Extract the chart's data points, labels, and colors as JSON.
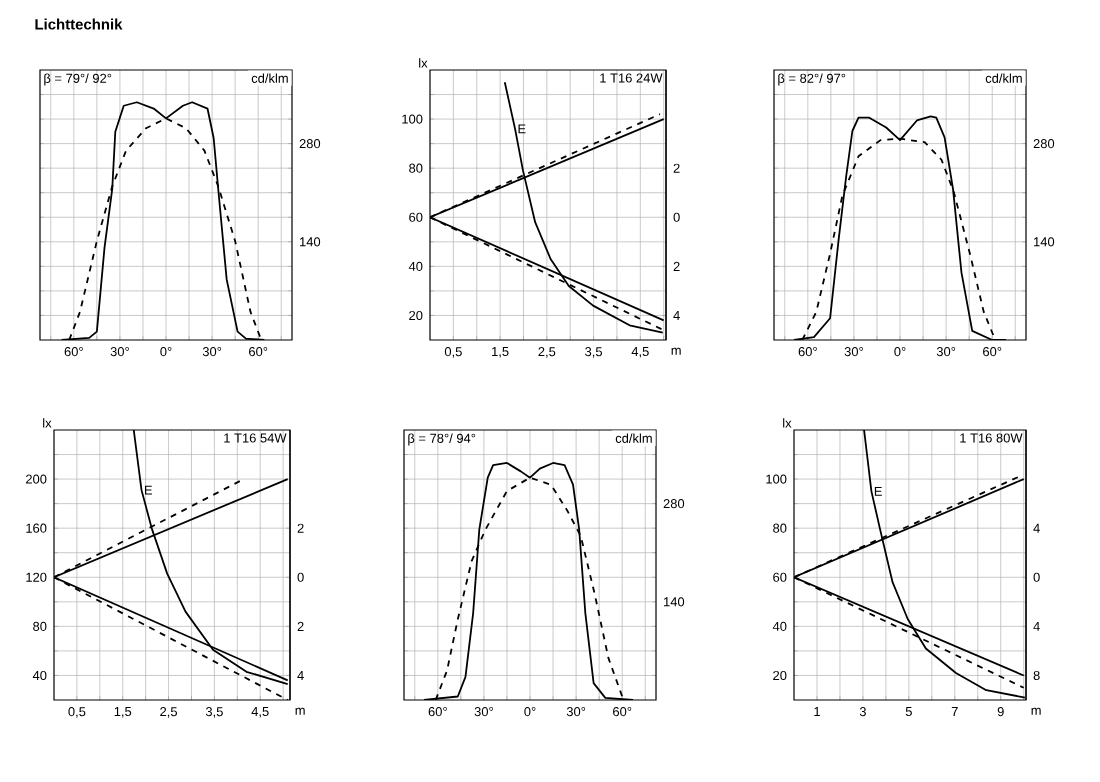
{
  "chart_data": [
    {
      "type": "line",
      "title": "Lichttechnik",
      "ylabel": "cd/klm",
      "annotations": [
        "β = 79°/ 92°"
      ],
      "xlim": [
        -82,
        82
      ],
      "ylim": [
        0,
        385
      ],
      "grid": true,
      "xticks": [
        {
          "value": -75,
          "label": null
        },
        {
          "value": -60,
          "label": "60°"
        },
        {
          "value": -45,
          "label": null
        },
        {
          "value": -30,
          "label": "30°"
        },
        {
          "value": -15,
          "label": null
        },
        {
          "value": 0,
          "label": "0°"
        },
        {
          "value": 15,
          "label": null
        },
        {
          "value": 30,
          "label": "30°"
        },
        {
          "value": 45,
          "label": null
        },
        {
          "value": 60,
          "label": "60°"
        },
        {
          "value": 75,
          "label": null
        }
      ],
      "yticks": [
        {
          "value": 35,
          "label": null
        },
        {
          "value": 70,
          "label": null
        },
        {
          "value": 105,
          "label": null
        },
        140,
        {
          "value": 175,
          "label": null
        },
        {
          "value": 210,
          "label": null
        },
        {
          "value": 245,
          "label": null
        },
        280,
        {
          "value": 315,
          "label": null
        },
        {
          "value": 350,
          "label": null
        }
      ],
      "series": [
        {
          "color": "#000000",
          "line_style": "solid",
          "x": [
            -68,
            -50,
            -45,
            -40,
            -35,
            -33,
            -27.5,
            -19,
            -8,
            0,
            11,
            17,
            27,
            31,
            34,
            39.5,
            46.6,
            52,
            64
          ],
          "values": [
            0,
            3,
            12,
            132,
            215,
            297,
            334,
            339,
            330,
            316,
            334,
            339,
            330,
            288,
            215,
            86,
            12,
            2,
            0
          ]
        },
        {
          "color": "#000000",
          "line_style": "dashed",
          "x": [
            -63,
            -56,
            -45,
            -35,
            -26,
            -13,
            0,
            13,
            25,
            34,
            45,
            55,
            62
          ],
          "values": [
            0,
            40,
            141,
            219,
            270,
            302,
            316,
            302,
            270,
            219,
            141,
            40,
            0
          ]
        }
      ]
    },
    {
      "type": "line",
      "ylabel": "lx",
      "xlabel": "m",
      "annotations": [
        "1 T16 24W"
      ],
      "xlim": [
        0,
        5.05
      ],
      "ylim": [
        10,
        120
      ],
      "y2lim": [
        -5,
        6
      ],
      "grid": true,
      "xticks": [
        {
          "value": 0.5,
          "label": "0,5"
        },
        {
          "value": 1,
          "label": null
        },
        {
          "value": 1.5,
          "label": "1,5"
        },
        {
          "value": 2,
          "label": null
        },
        {
          "value": 2.5,
          "label": "2,5"
        },
        {
          "value": 3,
          "label": null
        },
        {
          "value": 3.5,
          "label": "3,5"
        },
        {
          "value": 4,
          "label": null
        },
        {
          "value": 4.5,
          "label": "4,5"
        },
        {
          "value": 5,
          "label": null
        }
      ],
      "yticks": [
        20,
        {
          "value": 30,
          "label": null
        },
        40,
        {
          "value": 50,
          "label": null
        },
        60,
        {
          "value": 70,
          "label": null
        },
        80,
        {
          "value": 90,
          "label": null
        },
        100,
        {
          "value": 110,
          "label": null
        }
      ],
      "y2ticks": [
        2,
        0,
        {
          "value": -2,
          "label": "2"
        },
        {
          "value": -4,
          "label": "4"
        }
      ],
      "series": [
        {
          "name": "E",
          "color": "#000000",
          "line_style": "solid",
          "x": [
            1.6,
            1.82,
            1.99,
            2.25,
            2.58,
            2.97,
            3.49,
            4.27,
            4.98
          ],
          "values": [
            115,
            96,
            79,
            58,
            43,
            32,
            24,
            16,
            13
          ]
        },
        {
          "color": "#000000",
          "line_style": "solid",
          "axis": "y2",
          "x": [
            0,
            5
          ],
          "values": [
            0,
            4.0
          ]
        },
        {
          "color": "#000000",
          "line_style": "dashed",
          "axis": "y2",
          "x": [
            0,
            4.92
          ],
          "values": [
            0,
            4.2
          ]
        },
        {
          "color": "#000000",
          "line_style": "solid",
          "axis": "y2",
          "x": [
            0,
            5
          ],
          "values": [
            0,
            -4.2
          ]
        },
        {
          "color": "#000000",
          "line_style": "dashed",
          "axis": "y2",
          "x": [
            0,
            5
          ],
          "values": [
            0,
            -4.6
          ]
        }
      ]
    },
    {
      "type": "line",
      "ylabel": "cd/klm",
      "annotations": [
        "β = 82°/ 97°"
      ],
      "xlim": [
        -82,
        82
      ],
      "ylim": [
        0,
        385
      ],
      "grid": true,
      "xticks": [
        {
          "value": -75,
          "label": null
        },
        {
          "value": -60,
          "label": "60°"
        },
        {
          "value": -45,
          "label": null
        },
        {
          "value": -30,
          "label": "30°"
        },
        {
          "value": -15,
          "label": null
        },
        {
          "value": 0,
          "label": "0°"
        },
        {
          "value": 15,
          "label": null
        },
        {
          "value": 30,
          "label": "30°"
        },
        {
          "value": 45,
          "label": null
        },
        {
          "value": 60,
          "label": "60°"
        },
        {
          "value": 75,
          "label": null
        }
      ],
      "yticks": [
        {
          "value": 35,
          "label": null
        },
        {
          "value": 70,
          "label": null
        },
        {
          "value": 105,
          "label": null
        },
        140,
        {
          "value": 175,
          "label": null
        },
        {
          "value": 210,
          "label": null
        },
        {
          "value": 245,
          "label": null
        },
        280,
        {
          "value": 315,
          "label": null
        },
        {
          "value": 350,
          "label": null
        }
      ],
      "series": [
        {
          "color": "#000000",
          "line_style": "solid",
          "x": [
            -69,
            -56,
            -45.5,
            -40,
            -35,
            -31,
            -27,
            -20,
            -9,
            0,
            11,
            20,
            23.6,
            29,
            34.5,
            40,
            47,
            60,
            69
          ],
          "values": [
            0,
            4,
            31,
            142,
            234,
            298,
            317,
            317,
            303,
            285,
            313,
            319,
            317,
            289,
            215,
            96,
            13,
            0,
            0
          ]
        },
        {
          "color": "#000000",
          "line_style": "dashed",
          "x": [
            -63.6,
            -54.5,
            -45.5,
            -37.5,
            -27,
            -12.7,
            0,
            16,
            27,
            35,
            45.5,
            54.5,
            62
          ],
          "values": [
            0,
            40,
            123,
            206,
            262,
            285,
            287,
            282,
            257,
            211,
            123,
            40,
            0
          ]
        }
      ]
    },
    {
      "type": "line",
      "ylabel": "lx",
      "xlabel": "m",
      "annotations": [
        "1 T16 54W"
      ],
      "xlim": [
        0,
        5.15
      ],
      "ylim": [
        20,
        240
      ],
      "y2lim": [
        -5,
        6
      ],
      "grid": true,
      "xticks": [
        {
          "value": 0.5,
          "label": "0,5"
        },
        {
          "value": 1,
          "label": null
        },
        {
          "value": 1.5,
          "label": "1,5"
        },
        {
          "value": 2,
          "label": null
        },
        {
          "value": 2.5,
          "label": "2,5"
        },
        {
          "value": 3,
          "label": null
        },
        {
          "value": 3.5,
          "label": "3,5"
        },
        {
          "value": 4,
          "label": null
        },
        {
          "value": 4.5,
          "label": "4,5"
        },
        {
          "value": 5,
          "label": null
        }
      ],
      "yticks": [
        40,
        {
          "value": 60,
          "label": null
        },
        80,
        {
          "value": 100,
          "label": null
        },
        120,
        {
          "value": 140,
          "label": null
        },
        160,
        {
          "value": 180,
          "label": null
        },
        200,
        {
          "value": 220,
          "label": null
        }
      ],
      "y2ticks": [
        2,
        0,
        {
          "value": -2,
          "label": "2"
        },
        {
          "value": -4,
          "label": "4"
        }
      ],
      "series": [
        {
          "name": "E",
          "color": "#000000",
          "line_style": "solid",
          "x": [
            1.74,
            1.91,
            2.14,
            2.47,
            2.87,
            3.47,
            4.2,
            5.1
          ],
          "values": [
            240,
            191,
            159,
            123,
            92,
            61,
            43,
            33
          ]
        },
        {
          "color": "#000000",
          "line_style": "solid",
          "axis": "y2",
          "x": [
            0,
            5.1
          ],
          "values": [
            0,
            4.0
          ]
        },
        {
          "color": "#000000",
          "line_style": "dashed",
          "axis": "y2",
          "x": [
            0,
            4.14
          ],
          "values": [
            0,
            4.0
          ]
        },
        {
          "color": "#000000",
          "line_style": "solid",
          "axis": "y2",
          "x": [
            0,
            5.1
          ],
          "values": [
            0,
            -4.2
          ]
        },
        {
          "color": "#000000",
          "line_style": "dashed",
          "axis": "y2",
          "x": [
            0,
            5.1
          ],
          "values": [
            0,
            -5.0
          ]
        }
      ]
    },
    {
      "type": "line",
      "ylabel": "cd/klm",
      "annotations": [
        "β = 78°/ 94°"
      ],
      "xlim": [
        -82,
        82
      ],
      "ylim": [
        0,
        385
      ],
      "grid": true,
      "xticks": [
        {
          "value": -75,
          "label": null
        },
        {
          "value": -60,
          "label": "60°"
        },
        {
          "value": -45,
          "label": null
        },
        {
          "value": -30,
          "label": "30°"
        },
        {
          "value": -15,
          "label": null
        },
        {
          "value": 0,
          "label": "0°"
        },
        {
          "value": 15,
          "label": null
        },
        {
          "value": 30,
          "label": "30°"
        },
        {
          "value": 45,
          "label": null
        },
        {
          "value": 60,
          "label": "60°"
        },
        {
          "value": 75,
          "label": null
        }
      ],
      "yticks": [
        {
          "value": 35,
          "label": null
        },
        {
          "value": 70,
          "label": null
        },
        {
          "value": 105,
          "label": null
        },
        140,
        {
          "value": 175,
          "label": null
        },
        {
          "value": 210,
          "label": null
        },
        {
          "value": 245,
          "label": null
        },
        280,
        {
          "value": 315,
          "label": null
        },
        {
          "value": 350,
          "label": null
        }
      ],
      "series": [
        {
          "color": "#000000",
          "line_style": "solid",
          "x": [
            -69,
            -47,
            -42,
            -37,
            -33,
            -27.5,
            -24,
            -15,
            -6,
            0,
            6.4,
            15,
            22.5,
            28,
            32,
            36,
            41.4,
            49,
            67
          ],
          "values": [
            0,
            5,
            33,
            124,
            243,
            317,
            335,
            338,
            326,
            317,
            330,
            338,
            335,
            307,
            243,
            124,
            24,
            3,
            0
          ]
        },
        {
          "color": "#000000",
          "line_style": "dashed",
          "x": [
            -61.4,
            -54,
            -47,
            -38,
            -29,
            -15,
            0,
            13.6,
            24,
            33,
            42,
            51,
            60,
            63.6
          ],
          "values": [
            0,
            42,
            115,
            198,
            243,
            298,
            317,
            307,
            271,
            234,
            152,
            60,
            5,
            0
          ]
        }
      ]
    },
    {
      "type": "line",
      "ylabel": "lx",
      "xlabel": "m",
      "annotations": [
        "1 T16 80W"
      ],
      "xlim": [
        0,
        10.1
      ],
      "ylim": [
        10,
        120
      ],
      "y2lim": [
        -10,
        12
      ],
      "grid": true,
      "xticks": [
        1,
        {
          "value": 2,
          "label": null
        },
        3,
        {
          "value": 4,
          "label": null
        },
        5,
        {
          "value": 6,
          "label": null
        },
        7,
        {
          "value": 8,
          "label": null
        },
        9,
        {
          "value": 10,
          "label": null
        }
      ],
      "yticks": [
        20,
        {
          "value": 30,
          "label": null
        },
        40,
        {
          "value": 50,
          "label": null
        },
        60,
        {
          "value": 70,
          "label": null
        },
        80,
        {
          "value": 90,
          "label": null
        },
        100,
        {
          "value": 110,
          "label": null
        }
      ],
      "y2ticks": [
        4,
        0,
        {
          "value": -4,
          "label": "4"
        },
        {
          "value": -8,
          "label": "8"
        }
      ],
      "series": [
        {
          "name": "E",
          "color": "#000000",
          "line_style": "solid",
          "x": [
            3.05,
            3.37,
            3.76,
            4.29,
            4.95,
            5.74,
            7.05,
            8.37,
            10.05
          ],
          "values": [
            120,
            95,
            79,
            58,
            43,
            31,
            21,
            14,
            11
          ]
        },
        {
          "color": "#000000",
          "line_style": "solid",
          "axis": "y2",
          "x": [
            0,
            10
          ],
          "values": [
            0,
            8
          ]
        },
        {
          "color": "#000000",
          "line_style": "dashed",
          "axis": "y2",
          "x": [
            0,
            9.8
          ],
          "values": [
            0,
            8.2
          ]
        },
        {
          "color": "#000000",
          "line_style": "solid",
          "axis": "y2",
          "x": [
            0,
            10
          ],
          "values": [
            0,
            -8
          ]
        },
        {
          "color": "#000000",
          "line_style": "dashed",
          "axis": "y2",
          "x": [
            0,
            10
          ],
          "values": [
            0,
            -9
          ]
        }
      ]
    }
  ]
}
